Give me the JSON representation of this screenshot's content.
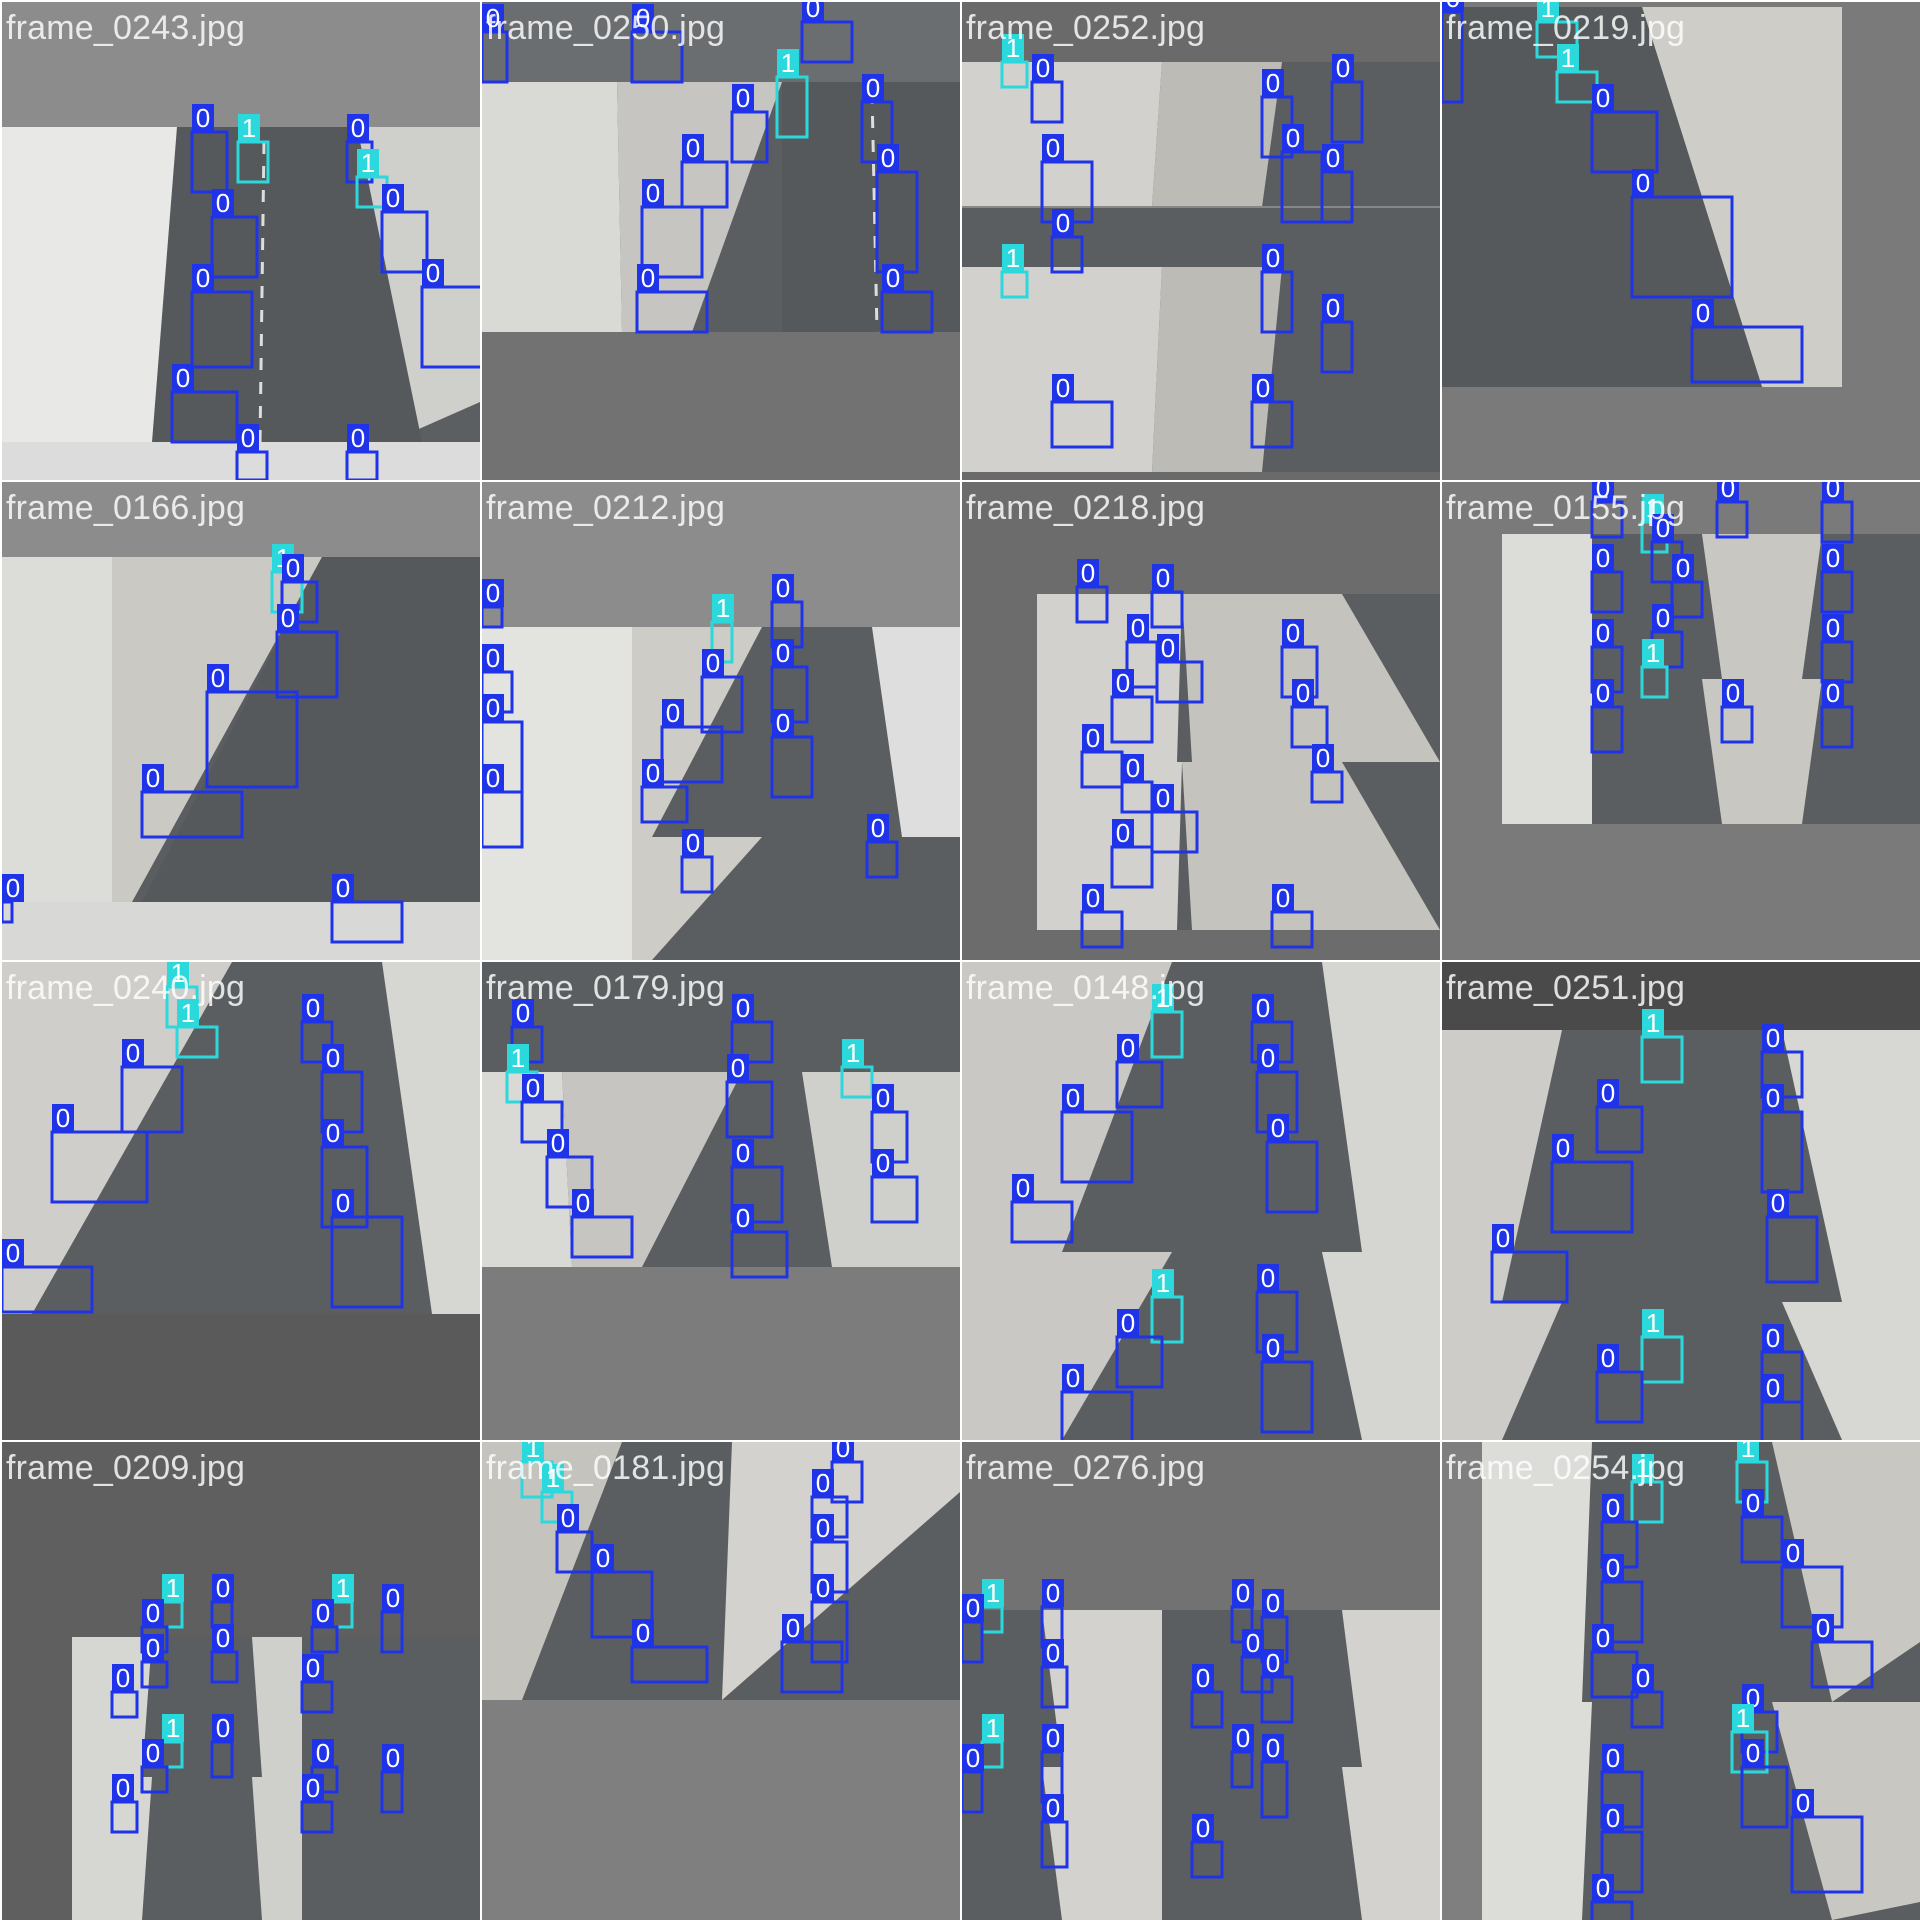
{
  "colors": {
    "class_0": "#1f34e8",
    "class_1": "#2bd9dd",
    "label_text": "#ffffff",
    "background_light": "#8c8c8c",
    "background_mid": "#727272",
    "background_dark": "#5f5f5f"
  },
  "class_labels": [
    "0",
    "1"
  ],
  "tiles": [
    {
      "filename": "frame_0243.jpg"
    },
    {
      "filename": "frame_0250.jpg"
    },
    {
      "filename": "frame_0252.jpg"
    },
    {
      "filename": "frame_0219.jpg"
    },
    {
      "filename": "frame_0166.jpg"
    },
    {
      "filename": "frame_0212.jpg"
    },
    {
      "filename": "frame_0218.jpg"
    },
    {
      "filename": "frame_0155.jpg"
    },
    {
      "filename": "frame_0240.jpg"
    },
    {
      "filename": "frame_0179.jpg"
    },
    {
      "filename": "frame_0148.jpg"
    },
    {
      "filename": "frame_0251.jpg"
    },
    {
      "filename": "frame_0209.jpg"
    },
    {
      "filename": "frame_0181.jpg"
    },
    {
      "filename": "frame_0276.jpg"
    },
    {
      "filename": "frame_0254.jpg"
    }
  ]
}
